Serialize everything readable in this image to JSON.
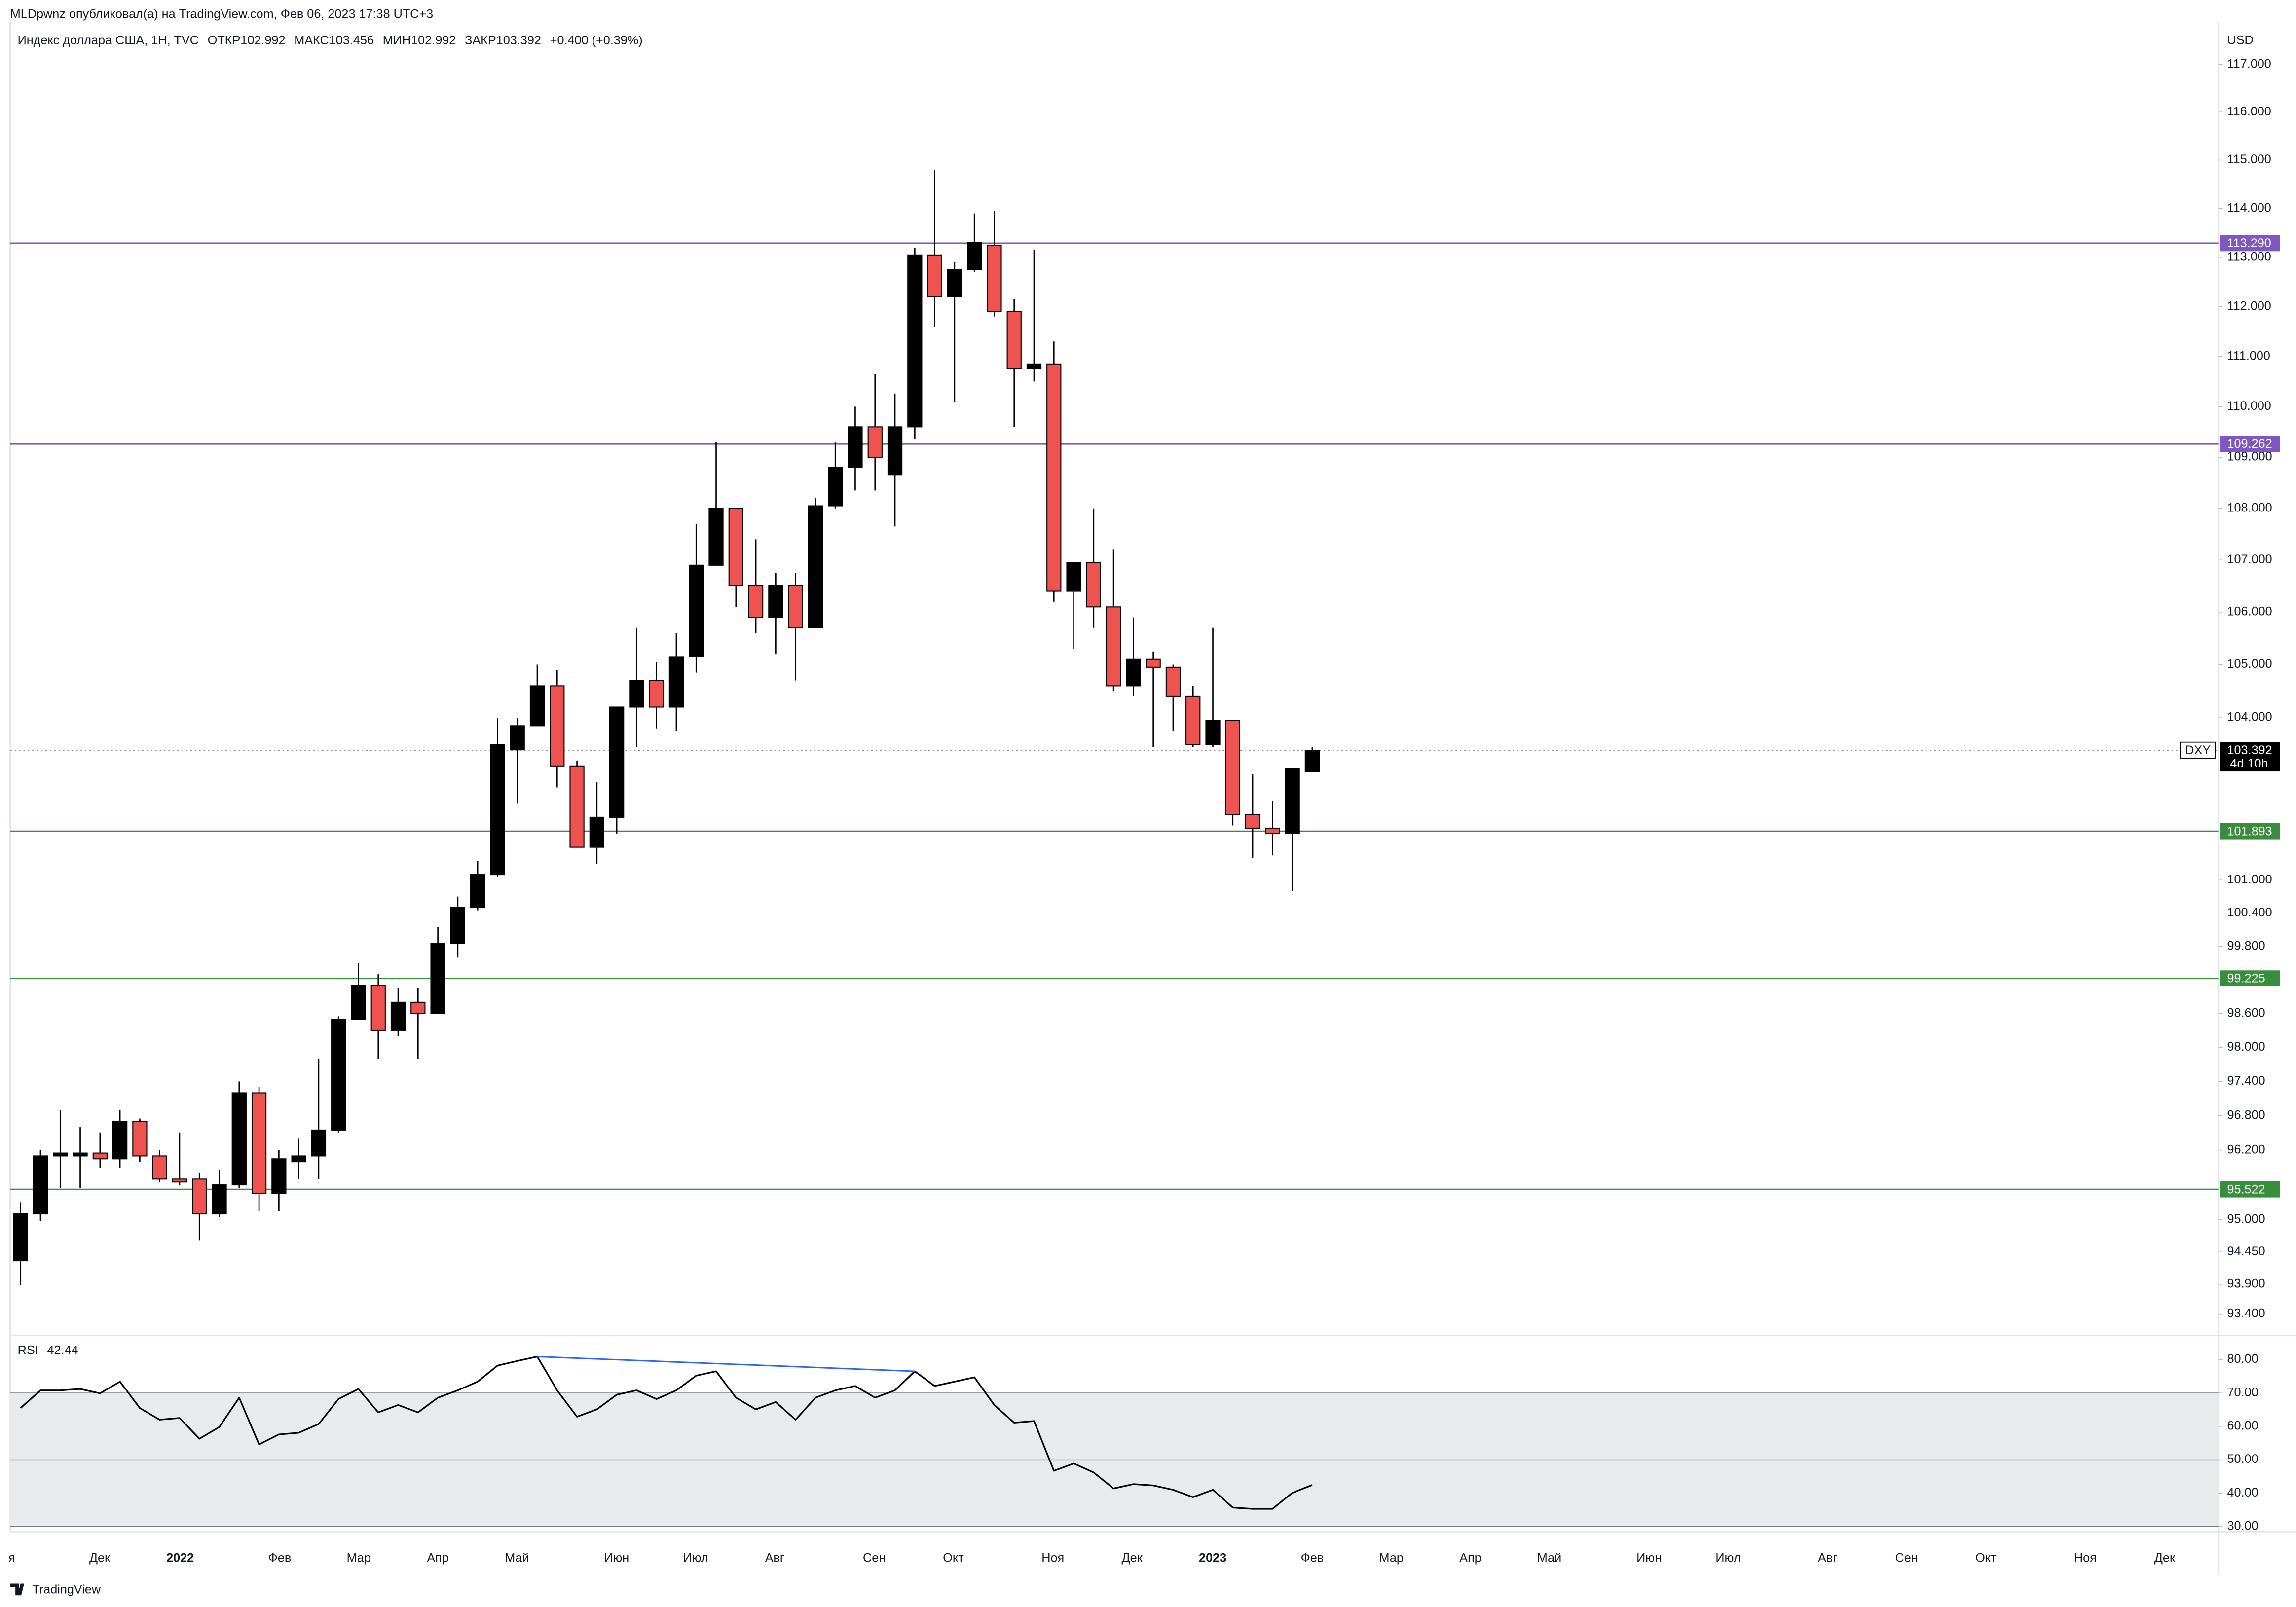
{
  "chart_data": {
    "type": "candlestick",
    "attribution": "MLDpwnz опубликовал(а) на TradingView.com, Фев 06, 2023 17:38 UTC+3",
    "legend": {
      "title": "Индекс доллара США, 1Н, TVC",
      "items": [
        {
          "label": "ОТКР",
          "value": "102.992"
        },
        {
          "label": "МАКС",
          "value": "103.456"
        },
        {
          "label": "МИН",
          "value": "102.992"
        },
        {
          "label": "ЗАКР",
          "value": "103.392"
        }
      ],
      "change": "+0.400 (+0.39%)"
    },
    "currency": "USD",
    "log_scale": true,
    "up_color": "#000000",
    "down_color": "#ef5350",
    "open": [
      94.3,
      95.1,
      96.1,
      96.1,
      96.15,
      96.05,
      96.7,
      96.1,
      95.7,
      95.7,
      95.1,
      95.6,
      97.2,
      95.45,
      96.0,
      96.1,
      96.55,
      98.5,
      99.1,
      98.3,
      98.8,
      98.6,
      99.85,
      100.5,
      101.1,
      103.4,
      103.85,
      104.6,
      103.1,
      101.6,
      102.15,
      104.2,
      104.7,
      104.2,
      105.15,
      106.9,
      108.0,
      106.5,
      105.9,
      106.5,
      105.7,
      108.05,
      108.8,
      109.6,
      108.65,
      109.6,
      113.05,
      112.2,
      112.75,
      113.25,
      111.9,
      110.75,
      110.85,
      106.4,
      106.95,
      106.1,
      104.6,
      105.1,
      104.95,
      104.4,
      103.5,
      103.95,
      102.2,
      101.95,
      101.85,
      102.992
    ],
    "high": [
      95.3,
      96.2,
      96.9,
      96.6,
      96.5,
      96.9,
      96.75,
      96.2,
      96.5,
      95.8,
      95.85,
      97.4,
      97.3,
      96.2,
      96.4,
      97.8,
      98.55,
      99.5,
      99.3,
      99.05,
      99.05,
      100.15,
      100.7,
      101.35,
      104.0,
      104.0,
      105.0,
      104.9,
      103.2,
      102.8,
      104.2,
      105.7,
      105.05,
      105.6,
      107.7,
      109.3,
      108.0,
      107.4,
      106.75,
      106.75,
      108.2,
      109.3,
      110.0,
      110.65,
      110.25,
      113.2,
      114.8,
      112.9,
      113.9,
      113.95,
      112.15,
      113.15,
      111.3,
      106.95,
      108.0,
      107.2,
      105.9,
      105.25,
      105.0,
      104.6,
      105.7,
      103.95,
      102.95,
      102.45,
      103.05,
      103.456
    ],
    "low": [
      93.89,
      94.98,
      95.55,
      95.55,
      95.9,
      95.9,
      96.0,
      95.65,
      95.6,
      94.65,
      95.05,
      95.55,
      95.15,
      95.15,
      95.7,
      95.7,
      96.5,
      98.5,
      97.8,
      98.2,
      97.8,
      98.6,
      99.6,
      100.45,
      101.05,
      102.4,
      103.85,
      102.7,
      101.6,
      101.3,
      101.85,
      103.45,
      103.8,
      103.75,
      104.85,
      106.9,
      106.1,
      105.6,
      105.2,
      104.7,
      105.7,
      108.0,
      108.35,
      108.35,
      107.65,
      109.35,
      111.6,
      110.1,
      112.7,
      111.8,
      109.6,
      110.5,
      106.2,
      105.3,
      105.7,
      104.5,
      104.4,
      103.45,
      103.75,
      103.45,
      103.45,
      102.0,
      101.4,
      101.45,
      100.8,
      102.992
    ],
    "close": [
      95.1,
      96.1,
      96.15,
      96.15,
      96.05,
      96.7,
      96.1,
      95.7,
      95.65,
      95.1,
      95.6,
      97.2,
      95.45,
      96.05,
      96.1,
      96.55,
      98.5,
      99.1,
      98.3,
      98.8,
      98.6,
      99.85,
      100.5,
      101.1,
      103.5,
      103.85,
      104.6,
      103.1,
      101.6,
      102.15,
      104.2,
      104.7,
      104.2,
      105.15,
      106.9,
      108.0,
      106.5,
      105.9,
      106.5,
      105.7,
      108.05,
      108.8,
      109.6,
      109.0,
      109.6,
      113.05,
      112.2,
      112.75,
      113.3,
      111.9,
      110.75,
      110.85,
      106.4,
      106.95,
      106.1,
      104.6,
      105.1,
      104.95,
      104.4,
      103.5,
      103.95,
      102.2,
      101.95,
      101.85,
      103.05,
      103.392
    ],
    "xlim": [
      -0.52,
      110.6
    ],
    "xticks": [
      {
        "value": -0.44,
        "label": "я"
      },
      {
        "value": 3.98,
        "label": "Дек"
      },
      {
        "value": 8.03,
        "label": "2022"
      },
      {
        "value": 13.04,
        "label": "Фев"
      },
      {
        "value": 17.02,
        "label": "Мар"
      },
      {
        "value": 21.0,
        "label": "Апр"
      },
      {
        "value": 24.98,
        "label": "Май"
      },
      {
        "value": 29.99,
        "label": "Июн"
      },
      {
        "value": 33.97,
        "label": "Июл"
      },
      {
        "value": 37.95,
        "label": "Авг"
      },
      {
        "value": 42.96,
        "label": "Сен"
      },
      {
        "value": 46.94,
        "label": "Окт"
      },
      {
        "value": 51.95,
        "label": "Ноя"
      },
      {
        "value": 55.93,
        "label": "Дек"
      },
      {
        "value": 59.99,
        "label": "2023"
      },
      {
        "value": 65.0,
        "label": "Фев"
      },
      {
        "value": 68.98,
        "label": "Мар"
      },
      {
        "value": 72.96,
        "label": "Апр"
      },
      {
        "value": 76.93,
        "label": "Май"
      },
      {
        "value": 81.95,
        "label": "Июн"
      },
      {
        "value": 85.93,
        "label": "Июл"
      },
      {
        "value": 90.94,
        "label": "Авг"
      },
      {
        "value": 94.91,
        "label": "Сен"
      },
      {
        "value": 98.9,
        "label": "Окт"
      },
      {
        "value": 103.9,
        "label": "Ноя"
      },
      {
        "value": 107.9,
        "label": "Дек"
      }
    ],
    "ylim": [
      93.05,
      117.9
    ],
    "yticks": [
      {
        "value": 117,
        "label": "117.000"
      },
      {
        "value": 116,
        "label": "116.000"
      },
      {
        "value": 115,
        "label": "115.000"
      },
      {
        "value": 114,
        "label": "114.000"
      },
      {
        "value": 113,
        "label": "113.000"
      },
      {
        "value": 112,
        "label": "112.000"
      },
      {
        "value": 111,
        "label": "111.000"
      },
      {
        "value": 110,
        "label": "110.000"
      },
      {
        "value": 109,
        "label": "109.000"
      },
      {
        "value": 108,
        "label": "108.000"
      },
      {
        "value": 107,
        "label": "107.000"
      },
      {
        "value": 106,
        "label": "106.000"
      },
      {
        "value": 105,
        "label": "105.000"
      },
      {
        "value": 104,
        "label": "104.000"
      },
      {
        "value": 101,
        "label": "101.000"
      },
      {
        "value": 100.4,
        "label": "100.400"
      },
      {
        "value": 99.8,
        "label": "99.800"
      },
      {
        "value": 98.6,
        "label": "98.600"
      },
      {
        "value": 98,
        "label": "98.000"
      },
      {
        "value": 97.4,
        "label": "97.400"
      },
      {
        "value": 96.8,
        "label": "96.800"
      },
      {
        "value": 96.2,
        "label": "96.200"
      },
      {
        "value": 95,
        "label": "95.000"
      },
      {
        "value": 94.45,
        "label": "94.450"
      },
      {
        "value": 93.9,
        "label": "93.900"
      },
      {
        "value": 93.4,
        "label": "93.400"
      }
    ],
    "levels": [
      {
        "value": 113.29,
        "label": "113.290",
        "color": "#7e57c2"
      },
      {
        "value": 109.262,
        "label": "109.262",
        "color": "#7e57c2"
      },
      {
        "value": 101.893,
        "label": "101.893",
        "color": "#388e3c"
      },
      {
        "value": 99.225,
        "label": "99.225",
        "color": "#388e3c"
      },
      {
        "value": 95.522,
        "label": "95.522",
        "color": "#388e3c"
      }
    ],
    "last_price": {
      "value": 103.392,
      "label": "103.392",
      "symbol": "DXY",
      "countdown": "4d 10h"
    },
    "rsi": {
      "name": "RSI",
      "color": "#000000",
      "values": [
        65.5,
        70.8,
        70.8,
        71.2,
        69.9,
        73.4,
        65.5,
        62.0,
        62.5,
        56.3,
        59.8,
        68.6,
        54.6,
        57.6,
        58.1,
        60.7,
        68.2,
        71.2,
        64.2,
        66.4,
        64.2,
        68.6,
        70.8,
        73.4,
        78.2,
        79.6,
        80.9,
        70.8,
        62.9,
        65.1,
        69.5,
        70.8,
        68.2,
        70.8,
        75.2,
        76.5,
        68.6,
        65.1,
        67.3,
        62.0,
        68.6,
        70.8,
        72.1,
        68.6,
        70.8,
        76.5,
        72.1,
        73.4,
        74.7,
        66.4,
        61.1,
        61.6,
        46.7,
        48.9,
        46.2,
        41.4,
        42.7,
        42.3,
        41.0,
        38.8,
        41.0,
        35.7,
        35.3,
        35.3,
        40.1,
        42.44
      ],
      "ylim": [
        28.7,
        87.0
      ],
      "yticks": [
        {
          "value": 80,
          "label": "80.00"
        },
        {
          "value": 70,
          "label": "70.00"
        },
        {
          "value": 60,
          "label": "60.00"
        },
        {
          "value": 50,
          "label": "50.00"
        },
        {
          "value": 40,
          "label": "40.00"
        },
        {
          "value": 30,
          "label": "30.00"
        }
      ],
      "band": [
        30,
        70
      ],
      "midline": 50
    },
    "brand": "TradingView"
  }
}
